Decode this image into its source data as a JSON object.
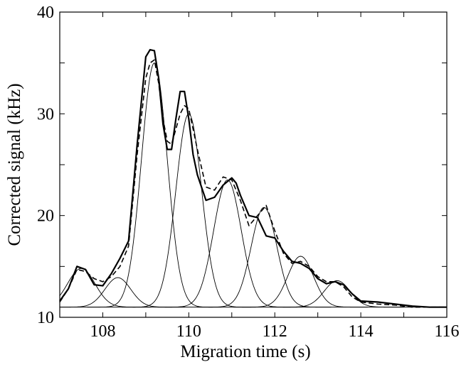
{
  "chart_data": {
    "type": "line",
    "title": "",
    "xlabel": "Migration time (s)",
    "ylabel": "Corrected signal (kHz)",
    "xlim": [
      107,
      116
    ],
    "ylim": [
      10,
      40
    ],
    "xticks": [
      108,
      110,
      112,
      114,
      116
    ],
    "yticks": [
      10,
      20,
      30,
      40
    ],
    "grid": false,
    "legend": "none",
    "baseline": 11,
    "components": [
      {
        "center": 107.5,
        "amplitude": 3.8,
        "sigma": 0.32
      },
      {
        "center": 108.35,
        "amplitude": 2.9,
        "sigma": 0.3
      },
      {
        "center": 109.2,
        "amplitude": 24.0,
        "sigma": 0.3
      },
      {
        "center": 110.0,
        "amplitude": 19.0,
        "sigma": 0.3
      },
      {
        "center": 110.9,
        "amplitude": 12.5,
        "sigma": 0.32
      },
      {
        "center": 111.75,
        "amplitude": 9.8,
        "sigma": 0.3
      },
      {
        "center": 112.6,
        "amplitude": 5.0,
        "sigma": 0.3
      },
      {
        "center": 113.45,
        "amplitude": 2.6,
        "sigma": 0.3
      }
    ],
    "series": [
      {
        "style": "solid-thick",
        "x": [
          107.0,
          107.2,
          107.4,
          107.6,
          107.8,
          108.0,
          108.2,
          108.4,
          108.6,
          108.8,
          109.0,
          109.1,
          109.2,
          109.3,
          109.4,
          109.5,
          109.6,
          109.7,
          109.8,
          109.9,
          110.0,
          110.1,
          110.2,
          110.4,
          110.6,
          110.8,
          111.0,
          111.1,
          111.2,
          111.4,
          111.6,
          111.8,
          112.0,
          112.2,
          112.4,
          112.6,
          112.8,
          113.0,
          113.2,
          113.4,
          113.6,
          113.8,
          114.0,
          114.4,
          114.8,
          115.2,
          115.6,
          116.0
        ],
        "y": [
          11.6,
          12.8,
          15.0,
          14.7,
          13.2,
          13.1,
          14.3,
          15.8,
          17.5,
          27.0,
          35.6,
          36.3,
          36.2,
          33.5,
          29.0,
          26.5,
          26.5,
          29.5,
          32.2,
          32.2,
          29.5,
          26.0,
          24.0,
          21.5,
          21.8,
          23.0,
          23.7,
          23.2,
          22.0,
          20.0,
          19.8,
          18.0,
          17.8,
          16.5,
          15.5,
          15.3,
          14.8,
          13.8,
          13.3,
          13.5,
          13.2,
          12.3,
          11.6,
          11.5,
          11.3,
          11.1,
          11.0,
          11.0
        ]
      },
      {
        "style": "dashed",
        "x": [
          107.0,
          107.2,
          107.4,
          107.6,
          107.8,
          108.0,
          108.2,
          108.4,
          108.6,
          108.8,
          109.0,
          109.1,
          109.2,
          109.3,
          109.4,
          109.5,
          109.6,
          109.7,
          109.8,
          109.9,
          110.0,
          110.1,
          110.2,
          110.4,
          110.6,
          110.8,
          111.0,
          111.2,
          111.4,
          111.6,
          111.8,
          112.0,
          112.2,
          112.4,
          112.6,
          112.8,
          113.0,
          113.2,
          113.4,
          113.6,
          113.8,
          114.0,
          114.4,
          114.8,
          115.2,
          115.6,
          116.0
        ],
        "y": [
          11.5,
          12.8,
          14.7,
          14.5,
          13.8,
          13.5,
          14.0,
          15.0,
          17.0,
          26.0,
          33.5,
          35.0,
          35.3,
          33.0,
          29.5,
          27.3,
          27.0,
          28.5,
          30.0,
          30.8,
          30.5,
          28.5,
          26.5,
          22.8,
          22.5,
          23.8,
          23.5,
          21.5,
          19.0,
          20.0,
          21.0,
          18.5,
          16.3,
          15.3,
          15.5,
          15.0,
          14.0,
          13.5,
          13.5,
          13.0,
          12.0,
          11.5,
          11.3,
          11.2,
          11.0,
          11.0,
          11.0
        ]
      }
    ]
  }
}
